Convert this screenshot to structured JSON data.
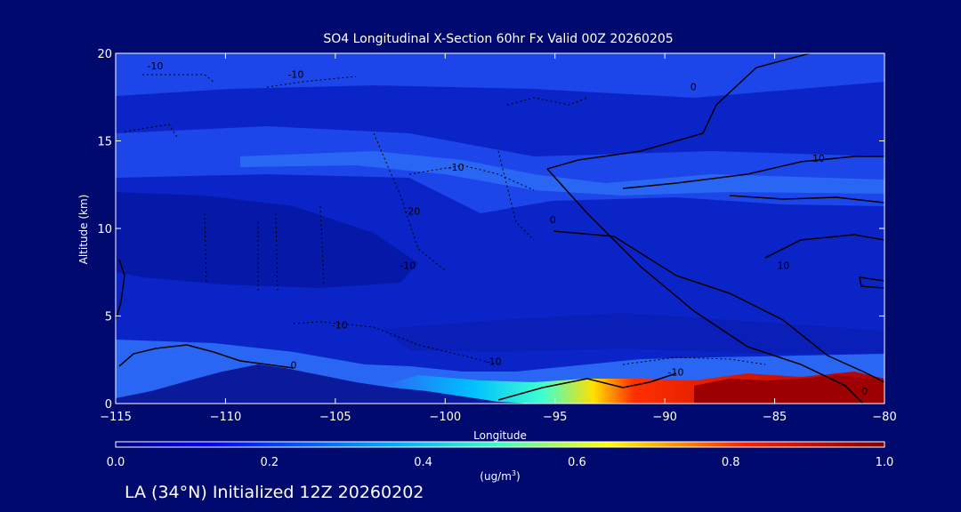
{
  "title": "SO4 Longitudinal X-Section 60hr  Fx Valid 00Z 20260205",
  "footer": "LA (34°N) Initialized 12Z 20260202",
  "chart_data": {
    "type": "heatmap",
    "xlabel": "Longitude",
    "ylabel": "Altitude (km)",
    "xlim": [
      -115,
      -80
    ],
    "ylim": [
      0,
      20
    ],
    "x_ticks": [
      -115,
      -110,
      -105,
      -100,
      -95,
      -90,
      -85,
      -80
    ],
    "y_ticks": [
      0,
      5,
      10,
      15,
      20
    ],
    "colorbar": {
      "label_prefix": "(ug/m",
      "label_sup": "3",
      "label_suffix": ")",
      "ticks": [
        "0.0",
        "0.2",
        "0.4",
        "0.6",
        "0.8",
        "1.0"
      ],
      "range": [
        0,
        1
      ]
    },
    "contour_labels": [
      {
        "text": "-10",
        "x": -113.2,
        "y": 19.3
      },
      {
        "text": "-10",
        "x": -106.8,
        "y": 18.8
      },
      {
        "text": "-10",
        "x": -99.5,
        "y": 13.5
      },
      {
        "text": "-20",
        "x": -101.5,
        "y": 11.0
      },
      {
        "text": "-10",
        "x": -104.8,
        "y": 4.5
      },
      {
        "text": "-10",
        "x": -101.7,
        "y": 7.9
      },
      {
        "text": "-10",
        "x": -97.8,
        "y": 2.4
      },
      {
        "text": "0",
        "x": -106.9,
        "y": 2.2
      },
      {
        "text": "0",
        "x": -95.1,
        "y": 10.5
      },
      {
        "text": "0",
        "x": -88.7,
        "y": 18.1
      },
      {
        "text": "-10",
        "x": -89.5,
        "y": 1.8
      },
      {
        "text": "10",
        "x": -83.0,
        "y": 14.0
      },
      {
        "text": "10",
        "x": -84.6,
        "y": 7.9
      },
      {
        "text": "0",
        "x": -80.9,
        "y": 0.7
      }
    ]
  },
  "colors": {
    "background": "#000a6e",
    "deep_blue": "#0a24c8",
    "mid_blue": "#1c46ea",
    "light_blue": "#2a66f4",
    "terrain": "#0a1a9a",
    "red": "#d81800",
    "dark_red": "#9c0000"
  }
}
